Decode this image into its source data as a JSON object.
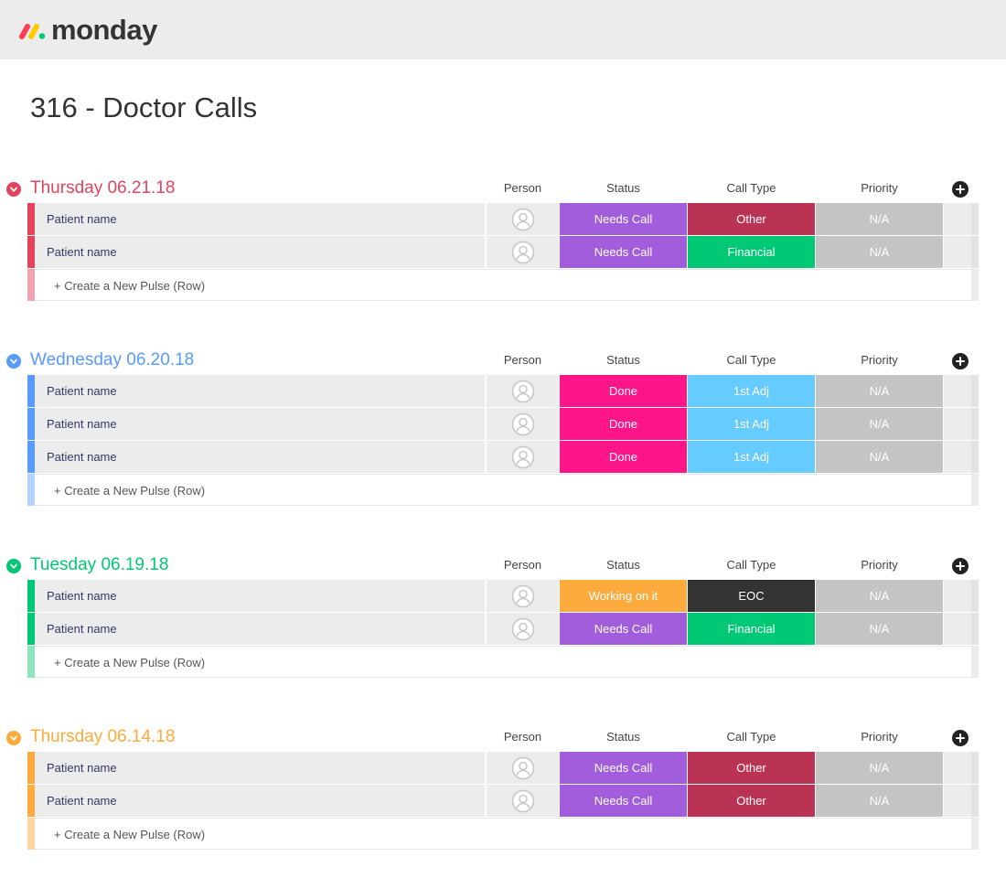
{
  "app": {
    "logo_text": "monday",
    "logo_colors": [
      "#ff3d57",
      "#ffcb00",
      "#00ca72"
    ]
  },
  "board": {
    "title": "316 - Doctor Calls"
  },
  "columns": {
    "person": "Person",
    "status": "Status",
    "call_type": "Call Type",
    "priority": "Priority"
  },
  "new_row_label": "+ Create a New Pulse (Row)",
  "groups": [
    {
      "title": "Thursday 06.21.18",
      "color": "#e2445c",
      "new_row_color": "#f3a3b0",
      "rows": [
        {
          "name": "Patient name",
          "status": "Needs Call",
          "status_color": "#a25ddc",
          "call_type": "Other",
          "call_type_color": "#bb3354",
          "priority": "N/A",
          "priority_color": "#c4c4c4"
        },
        {
          "name": "Patient name",
          "status": "Needs Call",
          "status_color": "#a25ddc",
          "call_type": "Financial",
          "call_type_color": "#00c875",
          "priority": "N/A",
          "priority_color": "#c4c4c4"
        }
      ]
    },
    {
      "title": "Wednesday 06.20.18",
      "color": "#579bfc",
      "new_row_color": "#b3d2fe",
      "rows": [
        {
          "name": "Patient name",
          "status": "Done",
          "status_color": "#ff158a",
          "call_type": "1st Adj",
          "call_type_color": "#66ccff",
          "priority": "N/A",
          "priority_color": "#c4c4c4"
        },
        {
          "name": "Patient name",
          "status": "Done",
          "status_color": "#ff158a",
          "call_type": "1st Adj",
          "call_type_color": "#66ccff",
          "priority": "N/A",
          "priority_color": "#c4c4c4"
        },
        {
          "name": "Patient name",
          "status": "Done",
          "status_color": "#ff158a",
          "call_type": "1st Adj",
          "call_type_color": "#66ccff",
          "priority": "N/A",
          "priority_color": "#c4c4c4"
        }
      ]
    },
    {
      "title": "Tuesday 06.19.18",
      "color": "#00c875",
      "new_row_color": "#8ee6bd",
      "rows": [
        {
          "name": "Patient name",
          "status": "Working on it",
          "status_color": "#fdab3d",
          "call_type": "EOC",
          "call_type_color": "#333333",
          "priority": "N/A",
          "priority_color": "#c4c4c4"
        },
        {
          "name": "Patient name",
          "status": "Needs Call",
          "status_color": "#a25ddc",
          "call_type": "Financial",
          "call_type_color": "#00c875",
          "priority": "N/A",
          "priority_color": "#c4c4c4"
        }
      ]
    },
    {
      "title": "Thursday 06.14.18",
      "color": "#fdab3d",
      "new_row_color": "#fed6a2",
      "rows": [
        {
          "name": "Patient name",
          "status": "Needs Call",
          "status_color": "#a25ddc",
          "call_type": "Other",
          "call_type_color": "#bb3354",
          "priority": "N/A",
          "priority_color": "#c4c4c4"
        },
        {
          "name": "Patient name",
          "status": "Needs Call",
          "status_color": "#a25ddc",
          "call_type": "Other",
          "call_type_color": "#bb3354",
          "priority": "N/A",
          "priority_color": "#c4c4c4"
        }
      ]
    }
  ]
}
